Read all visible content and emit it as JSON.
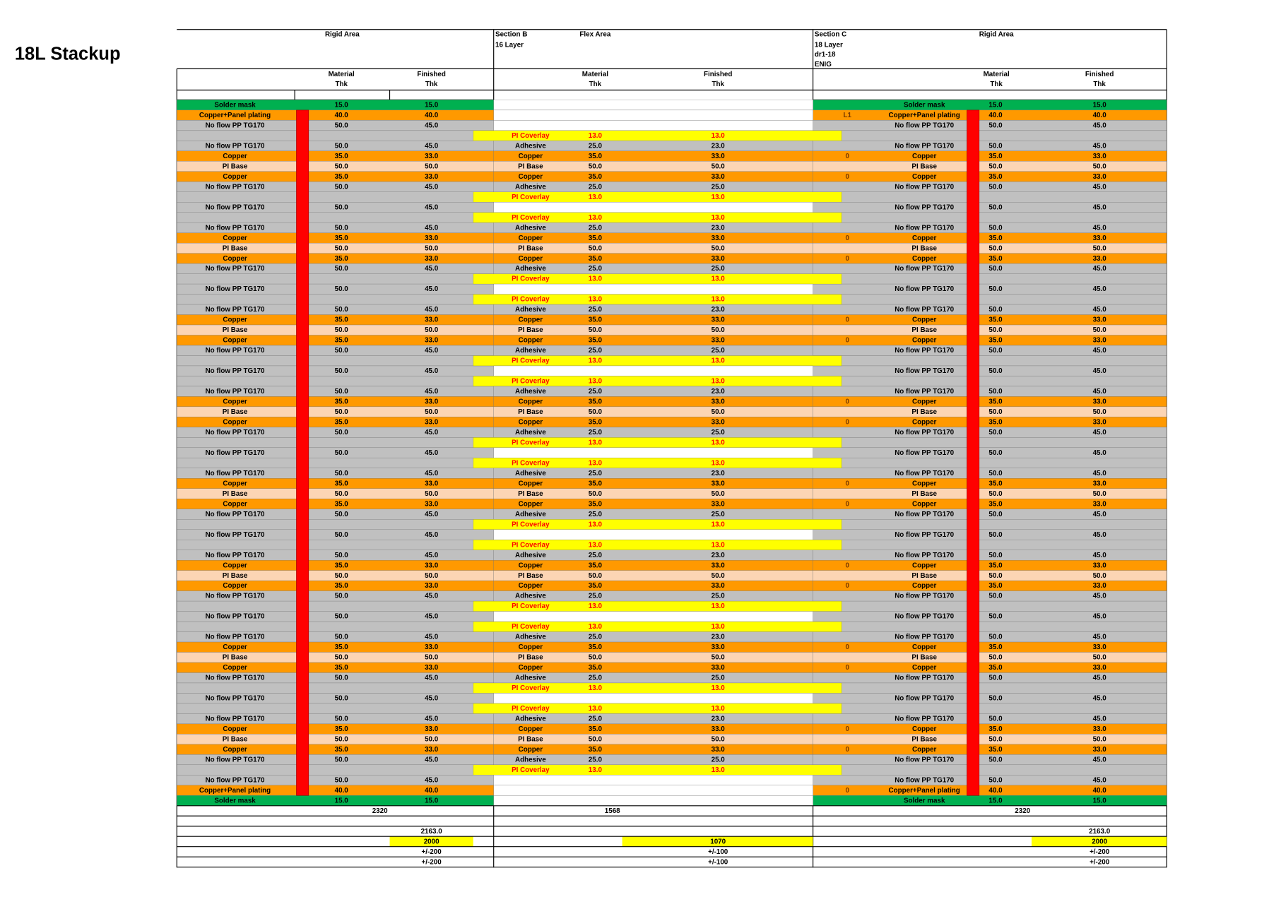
{
  "title": "18L Stackup",
  "header": {
    "left": {
      "area": "Rigid Area",
      "material": [
        "Material",
        "Thk"
      ],
      "finished": [
        "Finished",
        "Thk"
      ]
    },
    "flex": {
      "section": [
        "Section B",
        "16 Layer"
      ],
      "area": "Flex Area",
      "material": [
        "Material",
        "Thk"
      ],
      "finished": [
        "Finished",
        "Thk"
      ]
    },
    "right": {
      "section": [
        "Section C",
        "18 Layer",
        "dr1-18",
        "ENIG"
      ],
      "area": "Rigid Area",
      "material": [
        "Material",
        "Thk"
      ],
      "finished": [
        "Finished",
        "Thk"
      ]
    }
  },
  "rigid_left": {
    "rows": [
      [
        "Solder mask",
        "15.0",
        "15.0",
        "#00b050"
      ],
      [
        "Copper+Panel plating",
        "40.0",
        "40.0",
        "#ff9900"
      ],
      [
        "No flow PP TG170",
        "50.0",
        "45.0",
        "#c0c0c0"
      ],
      null,
      [
        "No flow PP TG170",
        "50.0",
        "45.0",
        "#c0c0c0"
      ],
      [
        "Copper",
        "35.0",
        "33.0",
        "#ff9900"
      ],
      [
        "PI Base",
        "50.0",
        "50.0",
        "#fcd5b4"
      ],
      [
        "Copper",
        "35.0",
        "33.0",
        "#ff9900"
      ],
      [
        "No flow PP TG170",
        "50.0",
        "45.0",
        "#c0c0c0"
      ],
      null,
      [
        "No flow PP TG170",
        "50.0",
        "45.0",
        "#c0c0c0"
      ],
      null,
      [
        "No flow PP TG170",
        "50.0",
        "45.0",
        "#c0c0c0"
      ],
      [
        "Copper",
        "35.0",
        "33.0",
        "#ff9900"
      ],
      [
        "PI Base",
        "50.0",
        "50.0",
        "#fcd5b4"
      ],
      [
        "Copper",
        "35.0",
        "33.0",
        "#ff9900"
      ],
      [
        "No flow PP TG170",
        "50.0",
        "45.0",
        "#c0c0c0"
      ],
      null,
      [
        "No flow PP TG170",
        "50.0",
        "45.0",
        "#c0c0c0"
      ],
      null,
      [
        "No flow PP TG170",
        "50.0",
        "45.0",
        "#c0c0c0"
      ],
      [
        "Copper",
        "35.0",
        "33.0",
        "#ff9900"
      ],
      [
        "PI Base",
        "50.0",
        "50.0",
        "#fcd5b4"
      ],
      [
        "Copper",
        "35.0",
        "33.0",
        "#ff9900"
      ],
      [
        "No flow PP TG170",
        "50.0",
        "45.0",
        "#c0c0c0"
      ],
      null,
      [
        "No flow PP TG170",
        "50.0",
        "45.0",
        "#c0c0c0"
      ],
      null,
      [
        "No flow PP TG170",
        "50.0",
        "45.0",
        "#c0c0c0"
      ],
      [
        "Copper",
        "35.0",
        "33.0",
        "#ff9900"
      ],
      [
        "PI Base",
        "50.0",
        "50.0",
        "#fcd5b4"
      ],
      [
        "Copper",
        "35.0",
        "33.0",
        "#ff9900"
      ],
      [
        "No flow PP TG170",
        "50.0",
        "45.0",
        "#c0c0c0"
      ],
      null,
      [
        "No flow PP TG170",
        "50.0",
        "45.0",
        "#c0c0c0"
      ],
      null,
      [
        "No flow PP TG170",
        "50.0",
        "45.0",
        "#c0c0c0"
      ],
      [
        "Copper",
        "35.0",
        "33.0",
        "#ff9900"
      ],
      [
        "PI Base",
        "50.0",
        "50.0",
        "#fcd5b4"
      ],
      [
        "Copper",
        "35.0",
        "33.0",
        "#ff9900"
      ],
      [
        "No flow PP TG170",
        "50.0",
        "45.0",
        "#c0c0c0"
      ],
      null,
      [
        "No flow PP TG170",
        "50.0",
        "45.0",
        "#c0c0c0"
      ],
      null,
      [
        "No flow PP TG170",
        "50.0",
        "45.0",
        "#c0c0c0"
      ],
      [
        "Copper",
        "35.0",
        "33.0",
        "#ff9900"
      ],
      [
        "PI Base",
        "50.0",
        "50.0",
        "#fcd5b4"
      ],
      [
        "Copper",
        "35.0",
        "33.0",
        "#ff9900"
      ],
      [
        "No flow PP TG170",
        "50.0",
        "45.0",
        "#c0c0c0"
      ],
      null,
      [
        "No flow PP TG170",
        "50.0",
        "45.0",
        "#c0c0c0"
      ],
      null,
      [
        "No flow PP TG170",
        "50.0",
        "45.0",
        "#c0c0c0"
      ],
      [
        "Copper",
        "35.0",
        "33.0",
        "#ff9900"
      ],
      [
        "PI Base",
        "50.0",
        "50.0",
        "#fcd5b4"
      ],
      [
        "Copper",
        "35.0",
        "33.0",
        "#ff9900"
      ],
      [
        "No flow PP TG170",
        "50.0",
        "45.0",
        "#c0c0c0"
      ],
      null,
      [
        "No flow PP TG170",
        "50.0",
        "45.0",
        "#c0c0c0"
      ],
      null,
      [
        "No flow PP TG170",
        "50.0",
        "45.0",
        "#c0c0c0"
      ],
      [
        "Copper",
        "35.0",
        "33.0",
        "#ff9900"
      ],
      [
        "PI Base",
        "50.0",
        "50.0",
        "#fcd5b4"
      ],
      [
        "Copper",
        "35.0",
        "33.0",
        "#ff9900"
      ],
      [
        "No flow PP TG170",
        "50.0",
        "45.0",
        "#c0c0c0"
      ],
      null,
      [
        "No flow PP TG170",
        "50.0",
        "45.0",
        "#c0c0c0"
      ],
      [
        "Copper+Panel plating",
        "40.0",
        "40.0",
        "#ff9900"
      ],
      [
        "Solder mask",
        "15.0",
        "15.0",
        "#00b050"
      ]
    ]
  },
  "flex": {
    "rows": [
      null,
      null,
      null,
      [
        "PI Coverlay",
        "13.0",
        "13.0",
        "#ffff00",
        "#ff0000"
      ],
      [
        "Adhesive",
        "25.0",
        "23.0",
        "#c0c0c0"
      ],
      [
        "Copper",
        "35.0",
        "33.0",
        "#ff9900"
      ],
      [
        "PI Base",
        "50.0",
        "50.0",
        "#fcd5b4"
      ],
      [
        "Copper",
        "35.0",
        "33.0",
        "#ff9900"
      ],
      [
        "Adhesive",
        "25.0",
        "25.0",
        "#c0c0c0"
      ],
      [
        "PI Coverlay",
        "13.0",
        "13.0",
        "#ffff00",
        "#ff0000"
      ],
      null,
      [
        "PI Coverlay",
        "13.0",
        "13.0",
        "#ffff00",
        "#ff0000"
      ],
      [
        "Adhesive",
        "25.0",
        "23.0",
        "#c0c0c0"
      ],
      [
        "Copper",
        "35.0",
        "33.0",
        "#ff9900"
      ],
      [
        "PI Base",
        "50.0",
        "50.0",
        "#fcd5b4"
      ],
      [
        "Copper",
        "35.0",
        "33.0",
        "#ff9900"
      ],
      [
        "Adhesive",
        "25.0",
        "25.0",
        "#c0c0c0"
      ],
      [
        "PI Coverlay",
        "13.0",
        "13.0",
        "#ffff00",
        "#ff0000"
      ],
      null,
      [
        "PI Coverlay",
        "13.0",
        "13.0",
        "#ffff00",
        "#ff0000"
      ],
      [
        "Adhesive",
        "25.0",
        "23.0",
        "#c0c0c0"
      ],
      [
        "Copper",
        "35.0",
        "33.0",
        "#ff9900"
      ],
      [
        "PI Base",
        "50.0",
        "50.0",
        "#fcd5b4"
      ],
      [
        "Copper",
        "35.0",
        "33.0",
        "#ff9900"
      ],
      [
        "Adhesive",
        "25.0",
        "25.0",
        "#c0c0c0"
      ],
      [
        "PI Coverlay",
        "13.0",
        "13.0",
        "#ffff00",
        "#ff0000"
      ],
      null,
      [
        "PI Coverlay",
        "13.0",
        "13.0",
        "#ffff00",
        "#ff0000"
      ],
      [
        "Adhesive",
        "25.0",
        "23.0",
        "#c0c0c0"
      ],
      [
        "Copper",
        "35.0",
        "33.0",
        "#ff9900"
      ],
      [
        "PI Base",
        "50.0",
        "50.0",
        "#fcd5b4"
      ],
      [
        "Copper",
        "35.0",
        "33.0",
        "#ff9900"
      ],
      [
        "Adhesive",
        "25.0",
        "25.0",
        "#c0c0c0"
      ],
      [
        "PI Coverlay",
        "13.0",
        "13.0",
        "#ffff00",
        "#ff0000"
      ],
      null,
      [
        "PI Coverlay",
        "13.0",
        "13.0",
        "#ffff00",
        "#ff0000"
      ],
      [
        "Adhesive",
        "25.0",
        "23.0",
        "#c0c0c0"
      ],
      [
        "Copper",
        "35.0",
        "33.0",
        "#ff9900"
      ],
      [
        "PI Base",
        "50.0",
        "50.0",
        "#fcd5b4"
      ],
      [
        "Copper",
        "35.0",
        "33.0",
        "#ff9900"
      ],
      [
        "Adhesive",
        "25.0",
        "25.0",
        "#c0c0c0"
      ],
      [
        "PI Coverlay",
        "13.0",
        "13.0",
        "#ffff00",
        "#ff0000"
      ],
      null,
      [
        "PI Coverlay",
        "13.0",
        "13.0",
        "#ffff00",
        "#ff0000"
      ],
      [
        "Adhesive",
        "25.0",
        "23.0",
        "#c0c0c0"
      ],
      [
        "Copper",
        "35.0",
        "33.0",
        "#ff9900"
      ],
      [
        "PI Base",
        "50.0",
        "50.0",
        "#fcd5b4"
      ],
      [
        "Copper",
        "35.0",
        "33.0",
        "#ff9900"
      ],
      [
        "Adhesive",
        "25.0",
        "25.0",
        "#c0c0c0"
      ],
      [
        "PI Coverlay",
        "13.0",
        "13.0",
        "#ffff00",
        "#ff0000"
      ],
      null,
      [
        "PI Coverlay",
        "13.0",
        "13.0",
        "#ffff00",
        "#ff0000"
      ],
      [
        "Adhesive",
        "25.0",
        "23.0",
        "#c0c0c0"
      ],
      [
        "Copper",
        "35.0",
        "33.0",
        "#ff9900"
      ],
      [
        "PI Base",
        "50.0",
        "50.0",
        "#fcd5b4"
      ],
      [
        "Copper",
        "35.0",
        "33.0",
        "#ff9900"
      ],
      [
        "Adhesive",
        "25.0",
        "25.0",
        "#c0c0c0"
      ],
      [
        "PI Coverlay",
        "13.0",
        "13.0",
        "#ffff00",
        "#ff0000"
      ],
      null,
      [
        "PI Coverlay",
        "13.0",
        "13.0",
        "#ffff00",
        "#ff0000"
      ],
      [
        "Adhesive",
        "25.0",
        "23.0",
        "#c0c0c0"
      ],
      [
        "Copper",
        "35.0",
        "33.0",
        "#ff9900"
      ],
      [
        "PI Base",
        "50.0",
        "50.0",
        "#fcd5b4"
      ],
      [
        "Copper",
        "35.0",
        "33.0",
        "#ff9900"
      ],
      [
        "Adhesive",
        "25.0",
        "25.0",
        "#c0c0c0"
      ],
      [
        "PI Coverlay",
        "13.0",
        "13.0",
        "#ffff00",
        "#ff0000"
      ],
      null,
      null,
      null
    ]
  },
  "rigid_right": {
    "rows": [
      [
        null,
        "Solder mask",
        "15.0",
        "15.0",
        "#00b050"
      ],
      [
        "L1",
        "Copper+Panel plating",
        "40.0",
        "40.0",
        "#ff9900"
      ],
      [
        null,
        "No flow PP TG170",
        "50.0",
        "45.0",
        "#c0c0c0"
      ],
      null,
      [
        null,
        "No flow PP TG170",
        "50.0",
        "45.0",
        "#c0c0c0"
      ],
      [
        "0",
        "Copper",
        "35.0",
        "33.0",
        "#ff9900"
      ],
      [
        null,
        "PI Base",
        "50.0",
        "50.0",
        "#fcd5b4"
      ],
      [
        "0",
        "Copper",
        "35.0",
        "33.0",
        "#ff9900"
      ],
      [
        null,
        "No flow PP TG170",
        "50.0",
        "45.0",
        "#c0c0c0"
      ],
      null,
      [
        null,
        "No flow PP TG170",
        "50.0",
        "45.0",
        "#c0c0c0"
      ],
      null,
      [
        null,
        "No flow PP TG170",
        "50.0",
        "45.0",
        "#c0c0c0"
      ],
      [
        "0",
        "Copper",
        "35.0",
        "33.0",
        "#ff9900"
      ],
      [
        null,
        "PI Base",
        "50.0",
        "50.0",
        "#fcd5b4"
      ],
      [
        "0",
        "Copper",
        "35.0",
        "33.0",
        "#ff9900"
      ],
      [
        null,
        "No flow PP TG170",
        "50.0",
        "45.0",
        "#c0c0c0"
      ],
      null,
      [
        null,
        "No flow PP TG170",
        "50.0",
        "45.0",
        "#c0c0c0"
      ],
      null,
      [
        null,
        "No flow PP TG170",
        "50.0",
        "45.0",
        "#c0c0c0"
      ],
      [
        "0",
        "Copper",
        "35.0",
        "33.0",
        "#ff9900"
      ],
      [
        null,
        "PI Base",
        "50.0",
        "50.0",
        "#fcd5b4"
      ],
      [
        "0",
        "Copper",
        "35.0",
        "33.0",
        "#ff9900"
      ],
      [
        null,
        "No flow PP TG170",
        "50.0",
        "45.0",
        "#c0c0c0"
      ],
      null,
      [
        null,
        "No flow PP TG170",
        "50.0",
        "45.0",
        "#c0c0c0"
      ],
      null,
      [
        null,
        "No flow PP TG170",
        "50.0",
        "45.0",
        "#c0c0c0"
      ],
      [
        "0",
        "Copper",
        "35.0",
        "33.0",
        "#ff9900"
      ],
      [
        null,
        "PI Base",
        "50.0",
        "50.0",
        "#fcd5b4"
      ],
      [
        "0",
        "Copper",
        "35.0",
        "33.0",
        "#ff9900"
      ],
      [
        null,
        "No flow PP TG170",
        "50.0",
        "45.0",
        "#c0c0c0"
      ],
      null,
      [
        null,
        "No flow PP TG170",
        "50.0",
        "45.0",
        "#c0c0c0"
      ],
      null,
      [
        null,
        "No flow PP TG170",
        "50.0",
        "45.0",
        "#c0c0c0"
      ],
      [
        "0",
        "Copper",
        "35.0",
        "33.0",
        "#ff9900"
      ],
      [
        null,
        "PI Base",
        "50.0",
        "50.0",
        "#fcd5b4"
      ],
      [
        "0",
        "Copper",
        "35.0",
        "33.0",
        "#ff9900"
      ],
      [
        null,
        "No flow PP TG170",
        "50.0",
        "45.0",
        "#c0c0c0"
      ],
      null,
      [
        null,
        "No flow PP TG170",
        "50.0",
        "45.0",
        "#c0c0c0"
      ],
      null,
      [
        null,
        "No flow PP TG170",
        "50.0",
        "45.0",
        "#c0c0c0"
      ],
      [
        "0",
        "Copper",
        "35.0",
        "33.0",
        "#ff9900"
      ],
      [
        null,
        "PI Base",
        "50.0",
        "50.0",
        "#fcd5b4"
      ],
      [
        "0",
        "Copper",
        "35.0",
        "33.0",
        "#ff9900"
      ],
      [
        null,
        "No flow PP TG170",
        "50.0",
        "45.0",
        "#c0c0c0"
      ],
      null,
      [
        null,
        "No flow PP TG170",
        "50.0",
        "45.0",
        "#c0c0c0"
      ],
      null,
      [
        null,
        "No flow PP TG170",
        "50.0",
        "45.0",
        "#c0c0c0"
      ],
      [
        "0",
        "Copper",
        "35.0",
        "33.0",
        "#ff9900"
      ],
      [
        null,
        "PI Base",
        "50.0",
        "50.0",
        "#fcd5b4"
      ],
      [
        "0",
        "Copper",
        "35.0",
        "33.0",
        "#ff9900"
      ],
      [
        null,
        "No flow PP TG170",
        "50.0",
        "45.0",
        "#c0c0c0"
      ],
      null,
      [
        null,
        "No flow PP TG170",
        "50.0",
        "45.0",
        "#c0c0c0"
      ],
      null,
      [
        null,
        "No flow PP TG170",
        "50.0",
        "45.0",
        "#c0c0c0"
      ],
      [
        "0",
        "Copper",
        "35.0",
        "33.0",
        "#ff9900"
      ],
      [
        null,
        "PI Base",
        "50.0",
        "50.0",
        "#fcd5b4"
      ],
      [
        "0",
        "Copper",
        "35.0",
        "33.0",
        "#ff9900"
      ],
      [
        null,
        "No flow PP TG170",
        "50.0",
        "45.0",
        "#c0c0c0"
      ],
      null,
      [
        null,
        "No flow PP TG170",
        "50.0",
        "45.0",
        "#c0c0c0"
      ],
      [
        "0",
        "Copper+Panel plating",
        "40.0",
        "40.0",
        "#ff9900"
      ],
      [
        null,
        "Solder mask",
        "15.0",
        "15.0",
        "#00b050"
      ]
    ]
  },
  "totals": {
    "left": "2320",
    "flex": "1568",
    "right": "2320"
  },
  "footer": [
    {
      "left": "2163.0",
      "right": "2163.0"
    },
    {
      "left": "2000",
      "flex": "1070",
      "right": "2000",
      "fill": "#ffff00"
    },
    {
      "left": "+/-200",
      "flex": "+/-100",
      "right": "+/-200"
    },
    {
      "left": "+/-200",
      "flex": "+/-100",
      "right": "+/-200"
    }
  ]
}
